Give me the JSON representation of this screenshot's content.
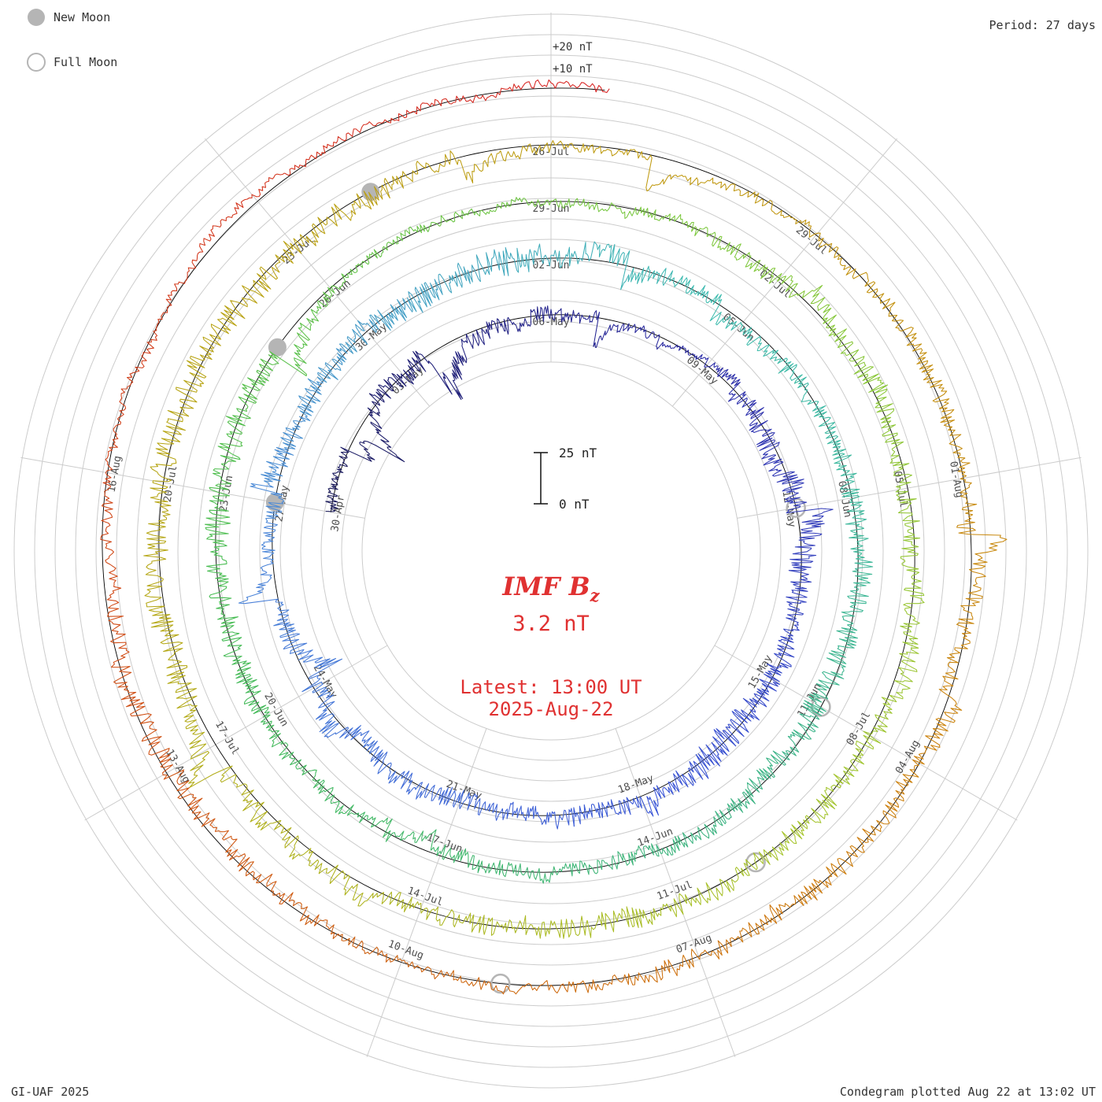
{
  "accent_red": "#e03131",
  "grid_color": "#cccccc",
  "baseline_color": "#000000",
  "moon_color": "#b5b5b5",
  "text_color": "#333333",
  "label_color": "#4d4d4d",
  "legend": {
    "new_moon": "New Moon",
    "full_moon": "Full Moon"
  },
  "header": {
    "period": "Period: 27 days"
  },
  "footer": {
    "left": "GI-UAF 2025",
    "right": "Condegram plotted Aug 22 at 13:02 UT"
  },
  "center": {
    "title_main": "IMF B",
    "title_sub": "z",
    "value": "3.2 nT",
    "latest_line1": "Latest: 13:00 UT",
    "latest_line2": "2025-Aug-22",
    "scalebar_top": "25 nT",
    "scalebar_bottom": "0 nT"
  },
  "outer_scale": {
    "plus20": "+20 nT",
    "plus10": "+10 nT"
  },
  "chart_data": {
    "type": "line",
    "variant": "condegram-spiral",
    "title": "IMF Bz",
    "units": "nT",
    "period_days": 27,
    "angular_direction": "clockwise",
    "zero_angle": "top",
    "date_tick_interval_days": 3,
    "latest_value_nT": 3.2,
    "latest_time": "13:00 UT 2025-Aug-22",
    "radial_scale_nT_per_division": 10,
    "scalebar_range_nT": [
      0,
      25
    ],
    "outer_reference_labels_nT": [
      10,
      20
    ],
    "date_ticks": [
      {
        "t": -6,
        "label": "30-Apr"
      },
      {
        "t": -3,
        "label": "03-May"
      },
      {
        "t": 0,
        "label": "06-May"
      },
      {
        "t": 3,
        "label": "09-May"
      },
      {
        "t": 6,
        "label": "12-May"
      },
      {
        "t": 9,
        "label": "15-May"
      },
      {
        "t": 12,
        "label": "18-May"
      },
      {
        "t": 15,
        "label": "21-May"
      },
      {
        "t": 18,
        "label": "24-May"
      },
      {
        "t": 21,
        "label": "27-May"
      },
      {
        "t": 24,
        "label": "30-May"
      },
      {
        "t": 27,
        "label": "02-Jun"
      },
      {
        "t": 30,
        "label": "05-Jun"
      },
      {
        "t": 33,
        "label": "08-Jun"
      },
      {
        "t": 36,
        "label": "11-Jun"
      },
      {
        "t": 39,
        "label": "14-Jun"
      },
      {
        "t": 42,
        "label": "17-Jun"
      },
      {
        "t": 45,
        "label": "20-Jun"
      },
      {
        "t": 48,
        "label": "23-Jun"
      },
      {
        "t": 51,
        "label": "26-Jun"
      },
      {
        "t": 54,
        "label": "29-Jun"
      },
      {
        "t": 57,
        "label": "02-Jul"
      },
      {
        "t": 60,
        "label": "05-Jul"
      },
      {
        "t": 63,
        "label": "08-Jul"
      },
      {
        "t": 66,
        "label": "11-Jul"
      },
      {
        "t": 69,
        "label": "14-Jul"
      },
      {
        "t": 72,
        "label": "17-Jul"
      },
      {
        "t": 75,
        "label": "20-Jul"
      },
      {
        "t": 78,
        "label": "23-Jul"
      },
      {
        "t": 81,
        "label": "26-Jul"
      },
      {
        "t": 84,
        "label": "29-Jul"
      },
      {
        "t": 87,
        "label": "01-Aug"
      },
      {
        "t": 90,
        "label": "04-Aug"
      },
      {
        "t": 93,
        "label": "07-Aug"
      },
      {
        "t": 96,
        "label": "10-Aug"
      },
      {
        "t": 99,
        "label": "13-Aug"
      },
      {
        "t": 102,
        "label": "16-Aug"
      }
    ],
    "moons": [
      {
        "type": "full",
        "t": 6,
        "date": "12-May"
      },
      {
        "type": "new",
        "t": 21,
        "date": "27-May"
      },
      {
        "type": "full",
        "t": 36,
        "date": "11-Jun"
      },
      {
        "type": "new",
        "t": 50,
        "date": "25-Jun"
      },
      {
        "type": "full",
        "t": 65,
        "date": "10-Jul"
      },
      {
        "type": "new",
        "t": 79,
        "date": "24-Jul"
      },
      {
        "type": "full",
        "t": 95,
        "date": "09-Aug"
      }
    ],
    "colormap_stops": [
      "#181858",
      "#2b2ba6",
      "#3a55d6",
      "#4b86d8",
      "#3fbcb0",
      "#3cb382",
      "#46bc50",
      "#7cc83e",
      "#a6c42c",
      "#b4a815",
      "#bf9a10",
      "#cd7e0c",
      "#cf4e12",
      "#d62020"
    ],
    "trace": {
      "synthetic": true,
      "seed": 20250822,
      "t_start": -6,
      "t_end": 108.5417,
      "sample_days": 0.02,
      "typical_amplitude_nT": 5,
      "max_excursion_nT": 27
    }
  }
}
